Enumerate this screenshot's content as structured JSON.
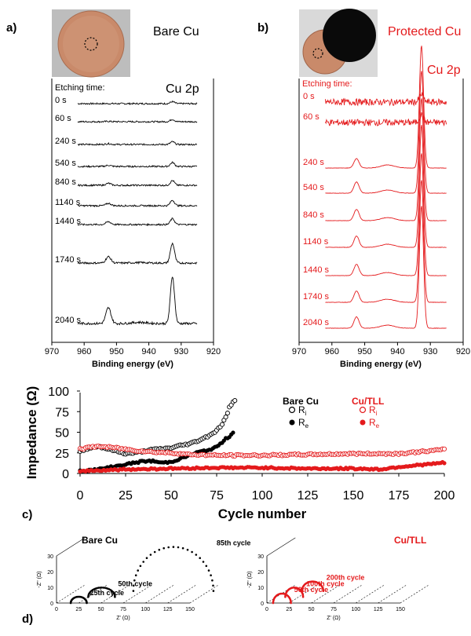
{
  "panel_labels": {
    "a": "a)",
    "b": "b)",
    "c": "c)",
    "d": "d)"
  },
  "colors": {
    "bare": "#000000",
    "protected": "#e41a1c",
    "photo_copper": "#c98a6a",
    "photo_film": "#0a0a0a"
  },
  "chart_data": [
    {
      "id": "a",
      "type": "line",
      "title": "Bare Cu",
      "peak_label": "Cu 2p",
      "etching_label": "Etching time:",
      "xlabel": "Binding energy (eV)",
      "xlim": [
        970,
        920
      ],
      "x_ticks": [
        "970",
        "960",
        "950",
        "940",
        "930",
        "920"
      ],
      "line_range": [
        962,
        925
      ],
      "series": [
        {
          "name": "0 s",
          "peak_932": 0.25,
          "peak_952": 0.0,
          "noise": 0.1
        },
        {
          "name": "60 s",
          "peak_932": 0.3,
          "peak_952": 0.05,
          "noise": 0.1
        },
        {
          "name": "240 s",
          "peak_932": 0.35,
          "peak_952": 0.1,
          "noise": 0.1
        },
        {
          "name": "540 s",
          "peak_932": 0.5,
          "peak_952": 0.15,
          "noise": 0.1
        },
        {
          "name": "840 s",
          "peak_932": 0.6,
          "peak_952": 0.25,
          "noise": 0.1
        },
        {
          "name": "1140 s",
          "peak_932": 0.7,
          "peak_952": 0.3,
          "noise": 0.1
        },
        {
          "name": "1440 s",
          "peak_932": 0.75,
          "peak_952": 0.35,
          "noise": 0.1
        },
        {
          "name": "1740 s",
          "peak_932": 2.5,
          "peak_952": 0.8,
          "noise": 0.12
        },
        {
          "name": "2040 s",
          "peak_932": 6.0,
          "peak_952": 2.0,
          "noise": 0.15
        }
      ]
    },
    {
      "id": "b",
      "type": "line",
      "title": "Protected Cu",
      "peak_label": "Cu 2p",
      "etching_label": "Etching time:",
      "xlabel": "Binding energy (eV)",
      "xlim": [
        970,
        920
      ],
      "x_ticks": [
        "970",
        "960",
        "950",
        "940",
        "930",
        "920"
      ],
      "line_range": [
        962,
        925
      ],
      "series": [
        {
          "name": "0 s",
          "peak_932": 0.8,
          "peak_952": 0.0,
          "noise": 0.35
        },
        {
          "name": "60 s",
          "peak_932": 0.8,
          "peak_952": 0.0,
          "noise": 0.35
        },
        {
          "name": "240 s",
          "peak_932": 13.0,
          "peak_952": 1.0,
          "noise": 0.02
        },
        {
          "name": "540 s",
          "peak_932": 13.0,
          "peak_952": 1.2,
          "noise": 0.02
        },
        {
          "name": "840 s",
          "peak_932": 13.0,
          "peak_952": 1.2,
          "noise": 0.02
        },
        {
          "name": "1140 s",
          "peak_932": 13.0,
          "peak_952": 1.2,
          "noise": 0.02
        },
        {
          "name": "1440 s",
          "peak_932": 13.0,
          "peak_952": 1.2,
          "noise": 0.02
        },
        {
          "name": "1740 s",
          "peak_932": 13.0,
          "peak_952": 1.2,
          "noise": 0.02
        },
        {
          "name": "2040 s",
          "peak_932": 13.0,
          "peak_952": 1.2,
          "noise": 0.02
        }
      ]
    },
    {
      "id": "c",
      "type": "scatter",
      "xlabel": "Cycle number",
      "ylabel": "Impedance (Ω)",
      "xlim": [
        0,
        200
      ],
      "ylim": [
        0,
        100
      ],
      "x_ticks": [
        "0",
        "25",
        "50",
        "75",
        "100",
        "125",
        "150",
        "175",
        "200"
      ],
      "y_ticks": [
        "0",
        "25",
        "50",
        "75",
        "100"
      ],
      "legend": {
        "bare_title": "Bare Cu",
        "tll_title": "Cu/TLL",
        "ri_label": "R",
        "ri_sub": "i",
        "re_label": "R",
        "re_sub": "e"
      },
      "series": [
        {
          "name": "Bare Cu Ri",
          "marker": "open",
          "color": "#000000",
          "points": [
            [
              0,
              27
            ],
            [
              5,
              31
            ],
            [
              10,
              33
            ],
            [
              15,
              30
            ],
            [
              20,
              27
            ],
            [
              25,
              24
            ],
            [
              30,
              25
            ],
            [
              35,
              27
            ],
            [
              40,
              29
            ],
            [
              45,
              30
            ],
            [
              50,
              31
            ],
            [
              55,
              34
            ],
            [
              60,
              36
            ],
            [
              65,
              40
            ],
            [
              70,
              45
            ],
            [
              75,
              52
            ],
            [
              78,
              60
            ],
            [
              80,
              68
            ],
            [
              82,
              80
            ],
            [
              84,
              86
            ],
            [
              85,
              89
            ]
          ]
        },
        {
          "name": "Bare Cu Re",
          "marker": "filled",
          "color": "#000000",
          "points": [
            [
              0,
              3
            ],
            [
              5,
              4
            ],
            [
              10,
              5
            ],
            [
              15,
              7
            ],
            [
              20,
              9
            ],
            [
              25,
              11
            ],
            [
              30,
              13
            ],
            [
              35,
              15
            ],
            [
              40,
              15
            ],
            [
              45,
              13
            ],
            [
              50,
              14
            ],
            [
              55,
              18
            ],
            [
              60,
              22
            ],
            [
              65,
              26
            ],
            [
              70,
              28
            ],
            [
              75,
              32
            ],
            [
              78,
              38
            ],
            [
              80,
              42
            ],
            [
              82,
              45
            ],
            [
              84,
              50
            ]
          ]
        },
        {
          "name": "Cu/TLL Ri",
          "marker": "open",
          "color": "#e41a1c",
          "points": [
            [
              0,
              30
            ],
            [
              10,
              33
            ],
            [
              20,
              31
            ],
            [
              30,
              28
            ],
            [
              40,
              26
            ],
            [
              50,
              25
            ],
            [
              60,
              23
            ],
            [
              75,
              22
            ],
            [
              100,
              22
            ],
            [
              125,
              23
            ],
            [
              150,
              24
            ],
            [
              175,
              24
            ],
            [
              200,
              29
            ]
          ]
        },
        {
          "name": "Cu/TLL Re",
          "marker": "filled",
          "color": "#e41a1c",
          "points": [
            [
              0,
              3
            ],
            [
              25,
              5
            ],
            [
              50,
              6
            ],
            [
              75,
              7
            ],
            [
              100,
              7
            ],
            [
              125,
              6
            ],
            [
              150,
              6
            ],
            [
              165,
              5
            ],
            [
              175,
              8
            ],
            [
              185,
              10
            ],
            [
              195,
              12
            ],
            [
              200,
              13
            ]
          ]
        }
      ]
    },
    {
      "id": "d-bare",
      "type": "scatter",
      "title": "Bare Cu",
      "xlabel": "Z' (Ω)",
      "ylabel": "-Z'' (Ω)",
      "xlim": [
        0,
        150
      ],
      "ylim": [
        0,
        30
      ],
      "x_ticks": [
        "0",
        "25",
        "50",
        "75",
        "100",
        "125",
        "150"
      ],
      "y_ticks": [
        "0",
        "10",
        "20",
        "30"
      ],
      "series": [
        {
          "name": "25th cycle",
          "center": 25,
          "radius": 9,
          "height": 4
        },
        {
          "name": "50th cycle",
          "center": 40,
          "radius": 15,
          "height": 6
        },
        {
          "name": "85th cycle",
          "center": 110,
          "radius": 45,
          "height": 28
        }
      ]
    },
    {
      "id": "d-tll",
      "type": "scatter",
      "title": "Cu/TLL",
      "xlabel": "Z' (Ω)",
      "ylabel": "-Z'' (Ω)",
      "xlim": [
        0,
        150
      ],
      "ylim": [
        0,
        30
      ],
      "x_ticks": [
        "0",
        "25",
        "50",
        "75",
        "100",
        "125",
        "150"
      ],
      "y_ticks": [
        "0",
        "10",
        "20",
        "30"
      ],
      "series": [
        {
          "name": "50th cycle",
          "center": 17,
          "radius": 10,
          "height": 6
        },
        {
          "name": "100th cycle",
          "center": 20,
          "radius": 10,
          "height": 6
        },
        {
          "name": "200th cycle",
          "center": 30,
          "radius": 12,
          "height": 6
        }
      ]
    }
  ]
}
